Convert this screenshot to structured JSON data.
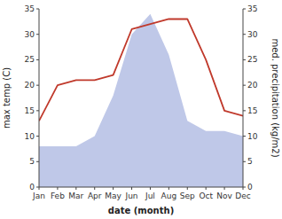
{
  "chart_data": {
    "type": "line",
    "categories": [
      "Jan",
      "Feb",
      "Mar",
      "Apr",
      "May",
      "Jun",
      "Jul",
      "Aug",
      "Sep",
      "Oct",
      "Nov",
      "Dec"
    ],
    "xlabel": "date (month)",
    "ylabel": "max temp (C)",
    "y2label": "med. precipitation (kg/m2)",
    "series": [
      {
        "type": "area",
        "axis": "y2",
        "color": "#bfc8e8",
        "values": [
          8,
          8,
          8,
          10,
          18,
          30,
          34,
          26,
          13,
          11,
          11,
          10
        ]
      },
      {
        "type": "line",
        "color": "#c0392b",
        "values": [
          13,
          20,
          21,
          21,
          22,
          31,
          32,
          33,
          33,
          25,
          15,
          14
        ]
      }
    ],
    "ylim": [
      0,
      35
    ],
    "yticks": [
      0,
      5,
      10,
      15,
      20,
      25,
      30,
      35
    ],
    "y2lim": [
      0,
      35
    ],
    "y2ticks": [
      0,
      5,
      10,
      15,
      20,
      25,
      30,
      35
    ],
    "grid": false
  }
}
